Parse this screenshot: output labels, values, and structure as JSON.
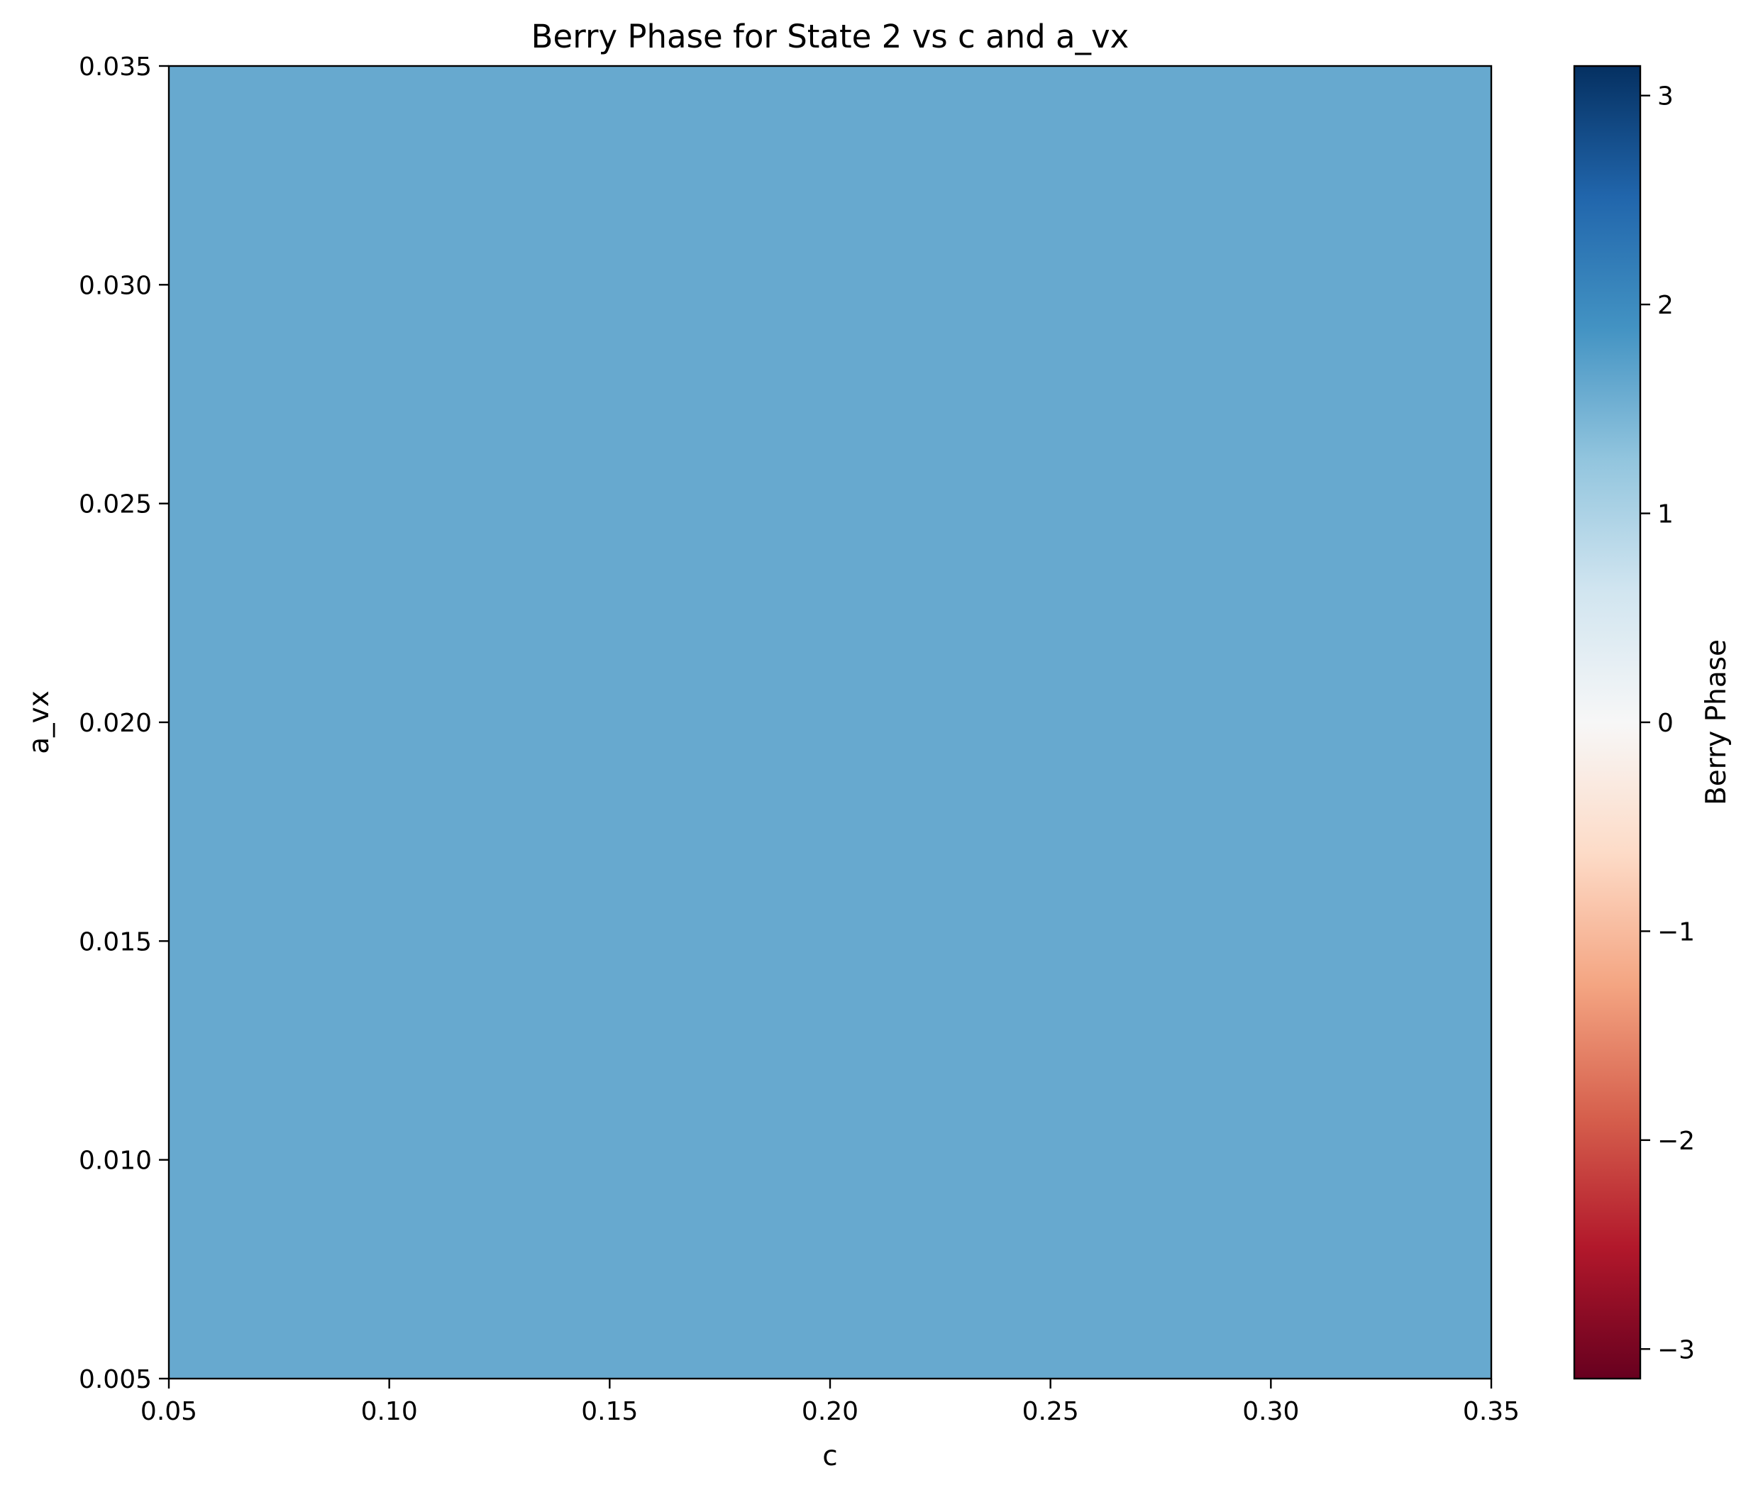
{
  "chart_data": {
    "type": "heatmap",
    "title": "Berry Phase for State 2 vs c and a_vx",
    "xlabel": "c",
    "ylabel": "a_vx",
    "xlim": [
      0.05,
      0.35
    ],
    "ylim": [
      0.005,
      0.035
    ],
    "x_ticks": [
      "0.05",
      "0.10",
      "0.15",
      "0.20",
      "0.25",
      "0.30",
      "0.35"
    ],
    "y_ticks": [
      "0.005",
      "0.010",
      "0.015",
      "0.020",
      "0.025",
      "0.030",
      "0.035"
    ],
    "values": [
      [
        1.6
      ]
    ],
    "colorbar": {
      "label": "Berry Phase",
      "colormap": "RdBu",
      "range": [
        -3.14159,
        3.14159
      ],
      "ticks": [
        "3",
        "2",
        "1",
        "0",
        "−1",
        "−2",
        "−3"
      ]
    },
    "fill_color": "#67a9cf",
    "grid": false
  }
}
